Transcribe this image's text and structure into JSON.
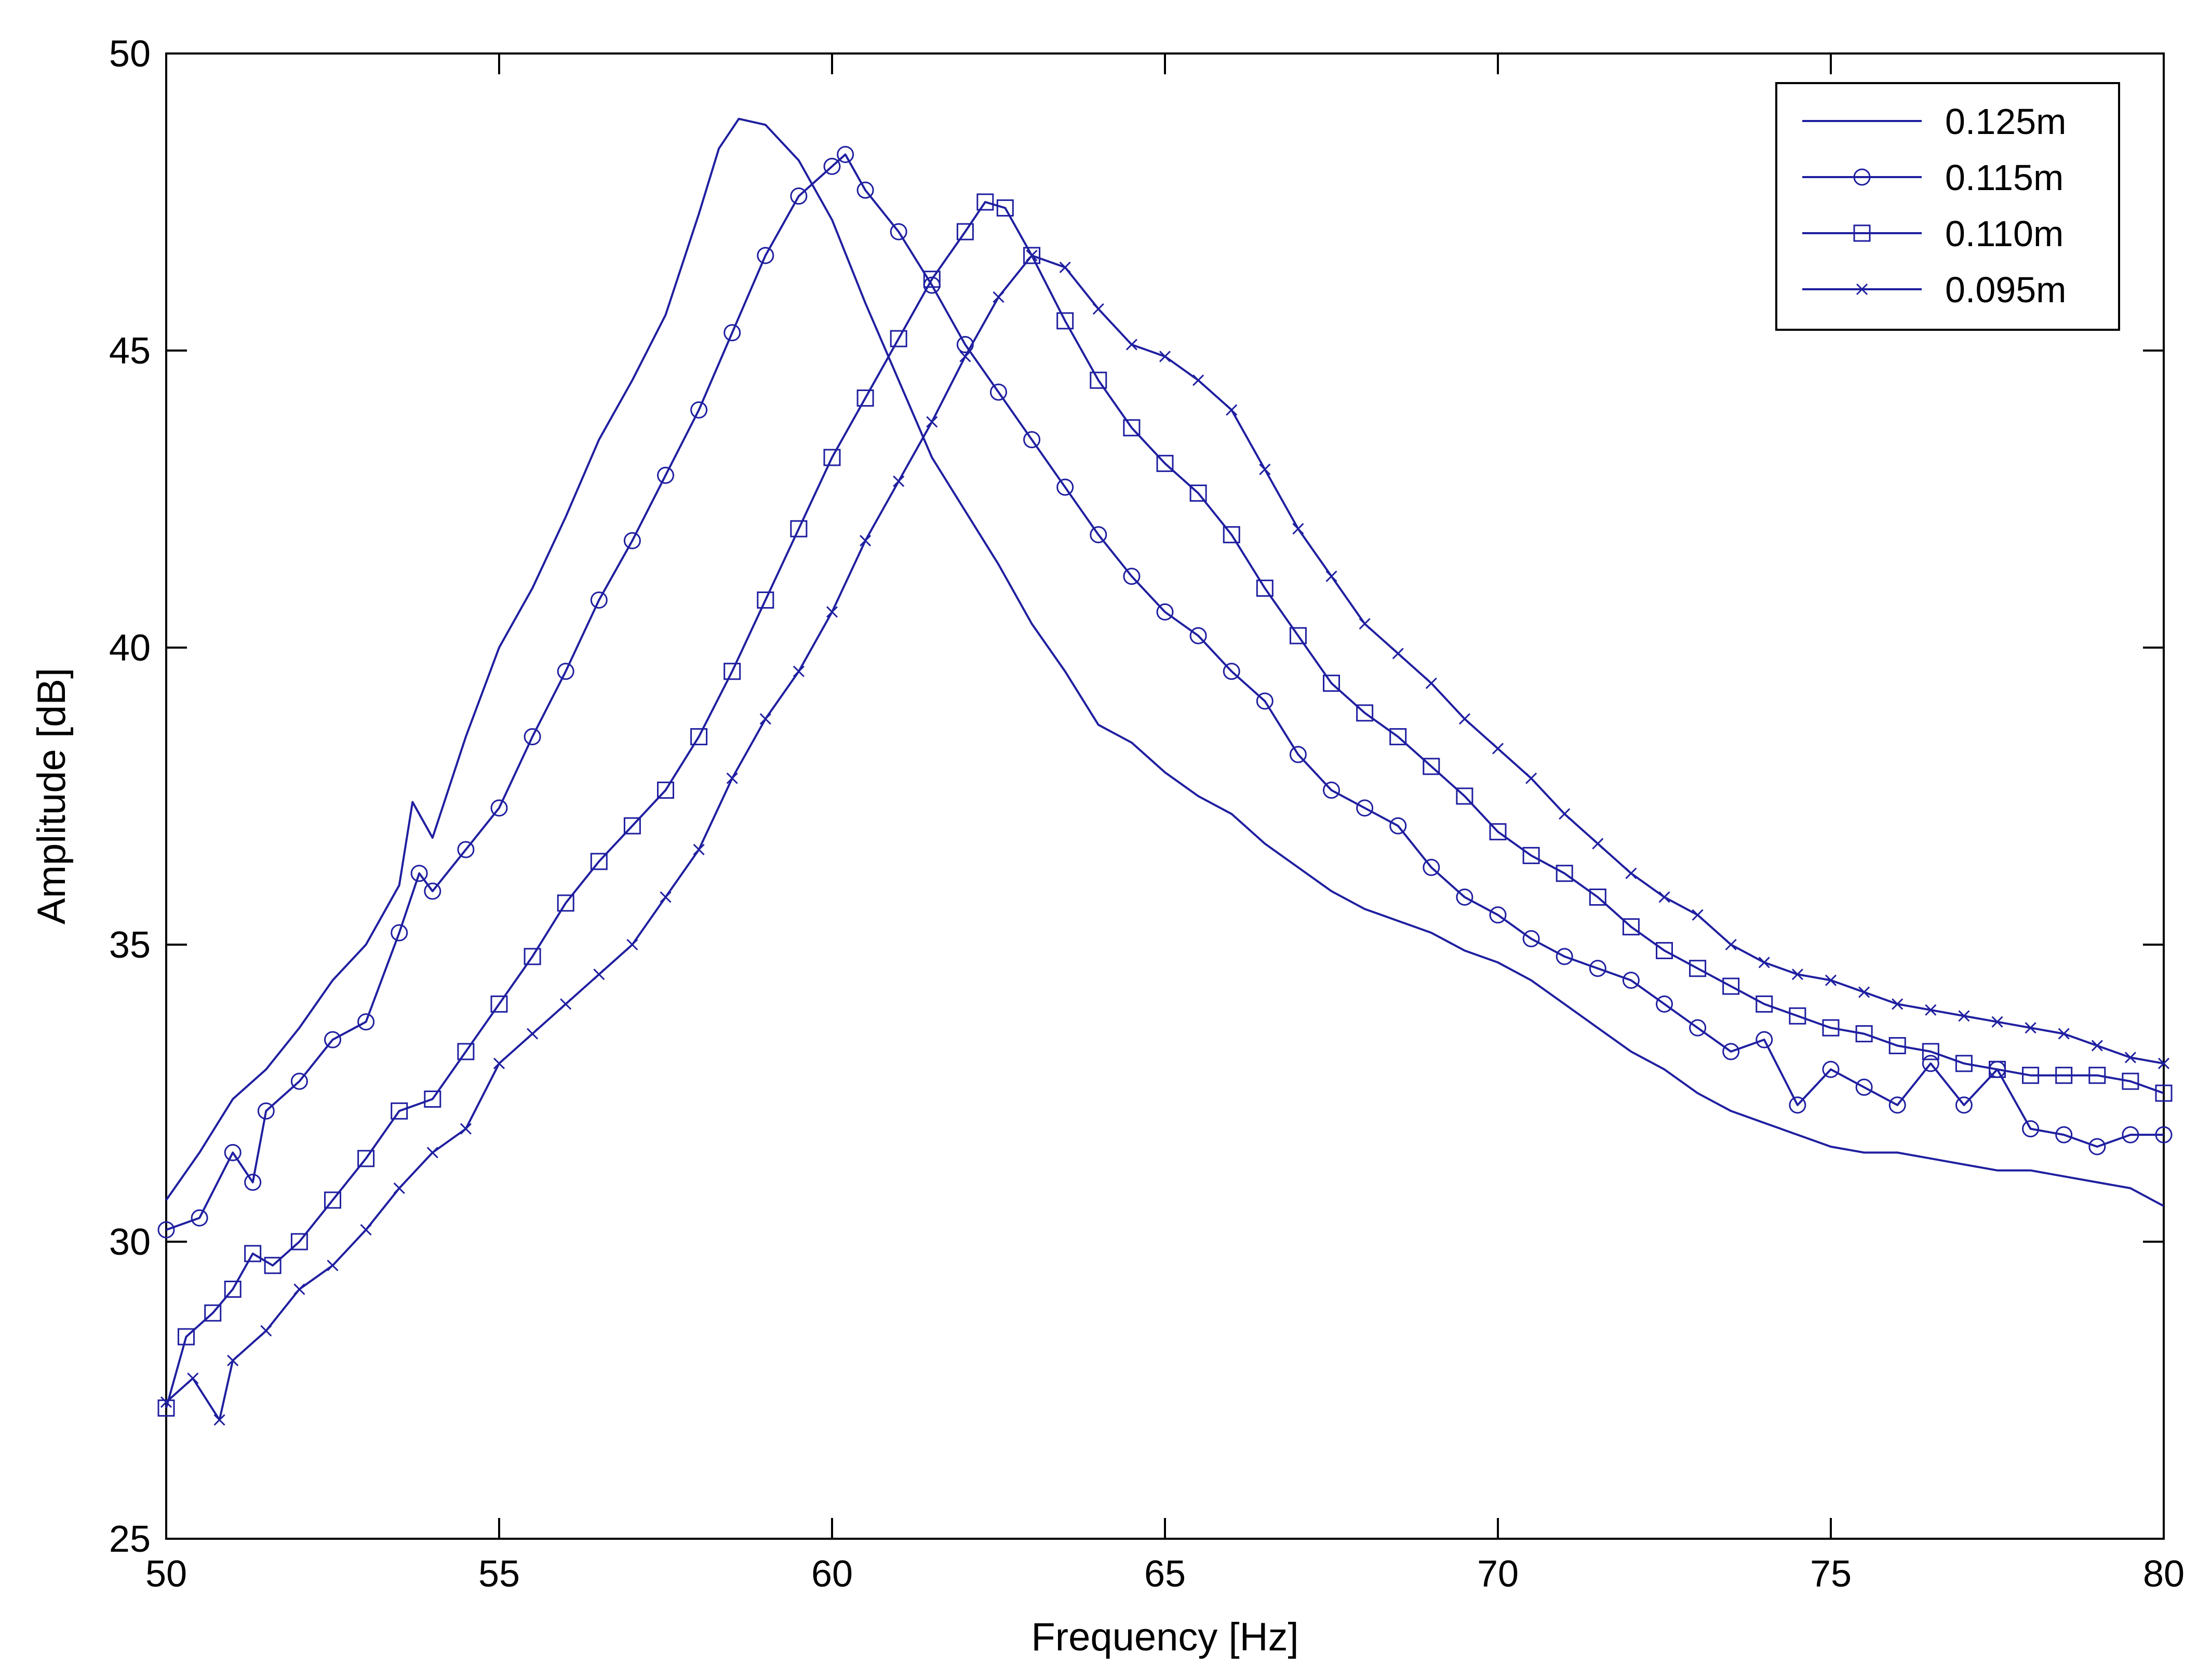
{
  "chart_data": {
    "type": "line",
    "title": "",
    "xlabel": "Frequency [Hz]",
    "ylabel": "Amplitude [dB]",
    "xlim": [
      50,
      80
    ],
    "ylim": [
      25,
      50
    ],
    "x_ticks": [
      "50",
      "55",
      "60",
      "65",
      "70",
      "75",
      "80"
    ],
    "y_ticks": [
      "25",
      "30",
      "35",
      "40",
      "45",
      "50"
    ],
    "grid": false,
    "legend_position": "top-right",
    "line_color": "#1f1fa0",
    "series": [
      {
        "name": "0.125m",
        "marker": "none",
        "points": [
          [
            50,
            30.7
          ],
          [
            50.5,
            31.5
          ],
          [
            51,
            32.4
          ],
          [
            51.5,
            32.9
          ],
          [
            52,
            33.6
          ],
          [
            52.5,
            34.4
          ],
          [
            53,
            35.0
          ],
          [
            53.5,
            36.0
          ],
          [
            53.7,
            37.4
          ],
          [
            54,
            36.8
          ],
          [
            54.5,
            38.5
          ],
          [
            55,
            40.0
          ],
          [
            55.5,
            41.0
          ],
          [
            56,
            42.2
          ],
          [
            56.5,
            43.5
          ],
          [
            57,
            44.5
          ],
          [
            57.5,
            45.6
          ],
          [
            58,
            47.3
          ],
          [
            58.3,
            48.4
          ],
          [
            58.6,
            48.9
          ],
          [
            59,
            48.8
          ],
          [
            59.5,
            48.2
          ],
          [
            60,
            47.2
          ],
          [
            60.5,
            45.8
          ],
          [
            61,
            44.5
          ],
          [
            61.5,
            43.2
          ],
          [
            62,
            42.3
          ],
          [
            62.5,
            41.4
          ],
          [
            63,
            40.4
          ],
          [
            63.5,
            39.6
          ],
          [
            64,
            38.7
          ],
          [
            64.5,
            38.4
          ],
          [
            65,
            37.9
          ],
          [
            65.5,
            37.5
          ],
          [
            66,
            37.2
          ],
          [
            66.5,
            36.7
          ],
          [
            67,
            36.3
          ],
          [
            67.5,
            35.9
          ],
          [
            68,
            35.6
          ],
          [
            68.5,
            35.4
          ],
          [
            69,
            35.2
          ],
          [
            69.5,
            34.9
          ],
          [
            70,
            34.7
          ],
          [
            70.5,
            34.4
          ],
          [
            71,
            34.0
          ],
          [
            71.5,
            33.6
          ],
          [
            72,
            33.2
          ],
          [
            72.5,
            32.9
          ],
          [
            73,
            32.5
          ],
          [
            73.5,
            32.2
          ],
          [
            74,
            32.0
          ],
          [
            74.5,
            31.8
          ],
          [
            75,
            31.6
          ],
          [
            75.5,
            31.5
          ],
          [
            76,
            31.5
          ],
          [
            76.5,
            31.4
          ],
          [
            77,
            31.3
          ],
          [
            77.5,
            31.2
          ],
          [
            78,
            31.2
          ],
          [
            78.5,
            31.1
          ],
          [
            79,
            31.0
          ],
          [
            79.5,
            30.9
          ],
          [
            80,
            30.6
          ]
        ]
      },
      {
        "name": "0.115m",
        "marker": "circle",
        "points": [
          [
            50,
            30.2
          ],
          [
            50.5,
            30.4
          ],
          [
            51,
            31.5
          ],
          [
            51.3,
            31.0
          ],
          [
            51.5,
            32.2
          ],
          [
            52,
            32.7
          ],
          [
            52.5,
            33.4
          ],
          [
            53,
            33.7
          ],
          [
            53.5,
            35.2
          ],
          [
            53.8,
            36.2
          ],
          [
            54,
            35.9
          ],
          [
            54.5,
            36.6
          ],
          [
            55,
            37.3
          ],
          [
            55.5,
            38.5
          ],
          [
            56,
            39.6
          ],
          [
            56.5,
            40.8
          ],
          [
            57,
            41.8
          ],
          [
            57.5,
            42.9
          ],
          [
            58,
            44.0
          ],
          [
            58.5,
            45.3
          ],
          [
            59,
            46.6
          ],
          [
            59.5,
            47.6
          ],
          [
            60,
            48.1
          ],
          [
            60.2,
            48.3
          ],
          [
            60.5,
            47.7
          ],
          [
            61,
            47.0
          ],
          [
            61.5,
            46.1
          ],
          [
            62,
            45.1
          ],
          [
            62.5,
            44.3
          ],
          [
            63,
            43.5
          ],
          [
            63.5,
            42.7
          ],
          [
            64,
            41.9
          ],
          [
            64.5,
            41.2
          ],
          [
            65,
            40.6
          ],
          [
            65.5,
            40.2
          ],
          [
            66,
            39.6
          ],
          [
            66.5,
            39.1
          ],
          [
            67,
            38.2
          ],
          [
            67.5,
            37.6
          ],
          [
            68,
            37.3
          ],
          [
            68.5,
            37.0
          ],
          [
            69,
            36.3
          ],
          [
            69.5,
            35.8
          ],
          [
            70,
            35.5
          ],
          [
            70.5,
            35.1
          ],
          [
            71,
            34.8
          ],
          [
            71.5,
            34.6
          ],
          [
            72,
            34.4
          ],
          [
            72.5,
            34.0
          ],
          [
            73,
            33.6
          ],
          [
            73.5,
            33.2
          ],
          [
            74,
            33.4
          ],
          [
            74.5,
            32.3
          ],
          [
            75,
            32.9
          ],
          [
            75.5,
            32.6
          ],
          [
            76,
            32.3
          ],
          [
            76.5,
            33.0
          ],
          [
            77,
            32.3
          ],
          [
            77.5,
            32.9
          ],
          [
            78,
            31.9
          ],
          [
            78.5,
            31.8
          ],
          [
            79,
            31.6
          ],
          [
            79.5,
            31.8
          ],
          [
            80,
            31.8
          ]
        ]
      },
      {
        "name": "0.110m",
        "marker": "square",
        "points": [
          [
            50,
            27.2
          ],
          [
            50.3,
            28.4
          ],
          [
            50.7,
            28.8
          ],
          [
            51,
            29.2
          ],
          [
            51.3,
            29.8
          ],
          [
            51.6,
            29.6
          ],
          [
            52,
            30.0
          ],
          [
            52.5,
            30.7
          ],
          [
            53,
            31.4
          ],
          [
            53.5,
            32.2
          ],
          [
            54,
            32.4
          ],
          [
            54.5,
            33.2
          ],
          [
            55,
            34.0
          ],
          [
            55.5,
            34.8
          ],
          [
            56,
            35.7
          ],
          [
            56.5,
            36.4
          ],
          [
            57,
            37.0
          ],
          [
            57.5,
            37.6
          ],
          [
            58,
            38.5
          ],
          [
            58.5,
            39.6
          ],
          [
            59,
            40.8
          ],
          [
            59.5,
            42.0
          ],
          [
            60,
            43.2
          ],
          [
            60.5,
            44.2
          ],
          [
            61,
            45.2
          ],
          [
            61.5,
            46.2
          ],
          [
            62,
            47.0
          ],
          [
            62.3,
            47.5
          ],
          [
            62.6,
            47.4
          ],
          [
            63,
            46.6
          ],
          [
            63.5,
            45.5
          ],
          [
            64,
            44.5
          ],
          [
            64.5,
            43.7
          ],
          [
            65,
            43.1
          ],
          [
            65.5,
            42.6
          ],
          [
            66,
            41.9
          ],
          [
            66.5,
            41.0
          ],
          [
            67,
            40.2
          ],
          [
            67.5,
            39.4
          ],
          [
            68,
            38.9
          ],
          [
            68.5,
            38.5
          ],
          [
            69,
            38.0
          ],
          [
            69.5,
            37.5
          ],
          [
            70,
            36.9
          ],
          [
            70.5,
            36.5
          ],
          [
            71,
            36.2
          ],
          [
            71.5,
            35.8
          ],
          [
            72,
            35.3
          ],
          [
            72.5,
            34.9
          ],
          [
            73,
            34.6
          ],
          [
            73.5,
            34.3
          ],
          [
            74,
            34.0
          ],
          [
            74.5,
            33.8
          ],
          [
            75,
            33.6
          ],
          [
            75.5,
            33.5
          ],
          [
            76,
            33.3
          ],
          [
            76.5,
            33.2
          ],
          [
            77,
            33.0
          ],
          [
            77.5,
            32.9
          ],
          [
            78,
            32.8
          ],
          [
            78.5,
            32.8
          ],
          [
            79,
            32.8
          ],
          [
            79.5,
            32.7
          ],
          [
            80,
            32.5
          ]
        ]
      },
      {
        "name": "0.095m",
        "marker": "x",
        "points": [
          [
            50,
            27.3
          ],
          [
            50.4,
            27.7
          ],
          [
            50.8,
            27.0
          ],
          [
            51,
            28.0
          ],
          [
            51.5,
            28.5
          ],
          [
            52,
            29.2
          ],
          [
            52.5,
            29.6
          ],
          [
            53,
            30.2
          ],
          [
            53.5,
            30.9
          ],
          [
            54,
            31.5
          ],
          [
            54.5,
            31.9
          ],
          [
            55,
            33.0
          ],
          [
            55.5,
            33.5
          ],
          [
            56,
            34.0
          ],
          [
            56.5,
            34.5
          ],
          [
            57,
            35.0
          ],
          [
            57.5,
            35.8
          ],
          [
            58,
            36.6
          ],
          [
            58.5,
            37.8
          ],
          [
            59,
            38.8
          ],
          [
            59.5,
            39.6
          ],
          [
            60,
            40.6
          ],
          [
            60.5,
            41.8
          ],
          [
            61,
            42.8
          ],
          [
            61.5,
            43.8
          ],
          [
            62,
            44.9
          ],
          [
            62.5,
            45.9
          ],
          [
            63,
            46.6
          ],
          [
            63.5,
            46.4
          ],
          [
            64,
            45.7
          ],
          [
            64.5,
            45.1
          ],
          [
            65,
            44.9
          ],
          [
            65.5,
            44.5
          ],
          [
            66,
            44.0
          ],
          [
            66.5,
            43.0
          ],
          [
            67,
            42.0
          ],
          [
            67.5,
            41.2
          ],
          [
            68,
            40.4
          ],
          [
            68.5,
            39.9
          ],
          [
            69,
            39.4
          ],
          [
            69.5,
            38.8
          ],
          [
            70,
            38.3
          ],
          [
            70.5,
            37.8
          ],
          [
            71,
            37.2
          ],
          [
            71.5,
            36.7
          ],
          [
            72,
            36.2
          ],
          [
            72.5,
            35.8
          ],
          [
            73,
            35.5
          ],
          [
            73.5,
            35.0
          ],
          [
            74,
            34.7
          ],
          [
            74.5,
            34.5
          ],
          [
            75,
            34.4
          ],
          [
            75.5,
            34.2
          ],
          [
            76,
            34.0
          ],
          [
            76.5,
            33.9
          ],
          [
            77,
            33.8
          ],
          [
            77.5,
            33.7
          ],
          [
            78,
            33.6
          ],
          [
            78.5,
            33.5
          ],
          [
            79,
            33.3
          ],
          [
            79.5,
            33.1
          ],
          [
            80,
            33.0
          ]
        ]
      }
    ]
  }
}
